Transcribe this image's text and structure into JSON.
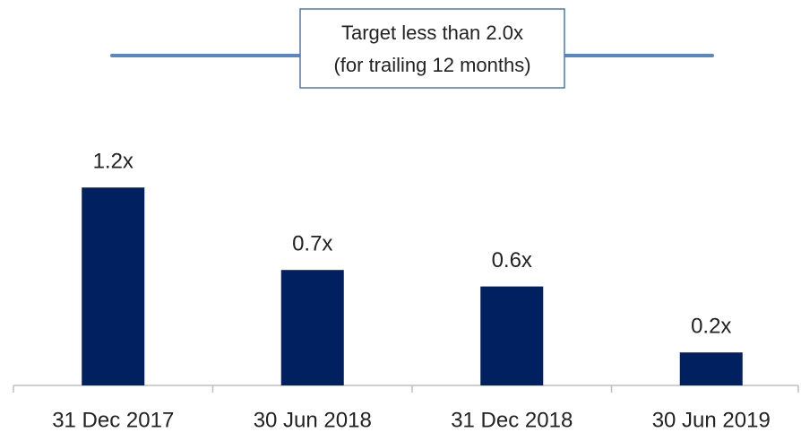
{
  "chart_data": {
    "type": "bar",
    "categories": [
      "31 Dec 2017",
      "30 Jun 2018",
      "31 Dec 2018",
      "30 Jun 2019"
    ],
    "values": [
      1.2,
      0.7,
      0.6,
      0.2
    ],
    "value_labels": [
      "1.2x",
      "0.7x",
      "0.6x",
      "0.2x"
    ],
    "color": "#002060",
    "ylim": [
      0,
      2.3
    ],
    "target": {
      "value": 2.0,
      "color": "#5b87c0",
      "label": [
        "Target less than 2.0x",
        "(for trailing 12 months)"
      ]
    }
  }
}
